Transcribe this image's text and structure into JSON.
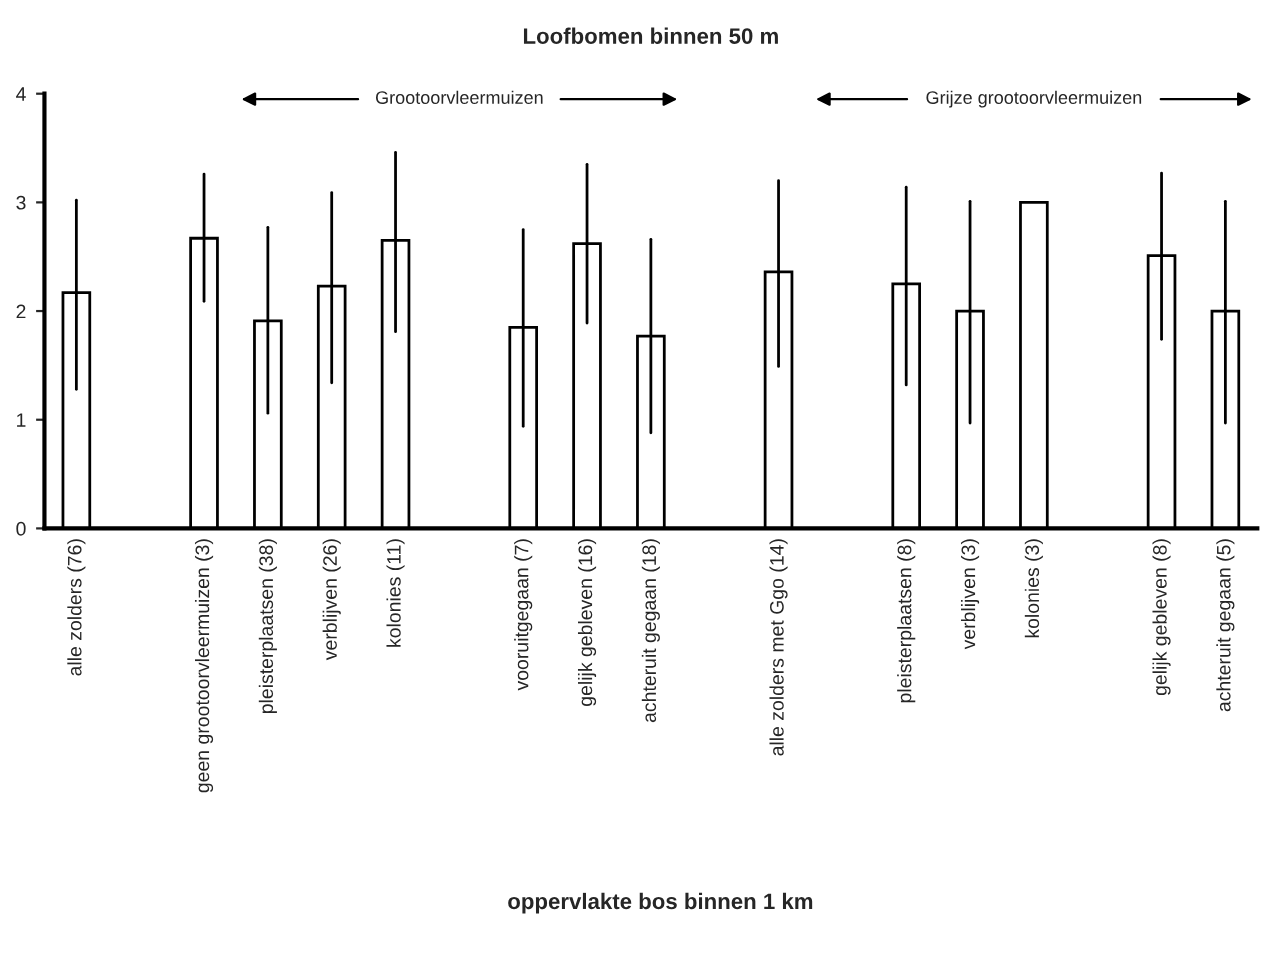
{
  "chart_data": {
    "type": "bar",
    "title": "Loofbomen binnen 50 m",
    "categories": [
      "alle zolders (76)",
      null,
      "geen grootoorvleermuizen (3)",
      "pleisterplaatsen (38)",
      "verblijven (26)",
      "kolonies (11)",
      null,
      "vooruitgegaan (7)",
      "gelijk gebleven (16)",
      "achteruit gegaan (18)",
      null,
      "alle zolders met Ggo (14)",
      null,
      "pleisterplaatsen (8)",
      "verblijven (3)",
      "kolonies (3)",
      null,
      "gelijk gebleven (8)",
      "achteruit gegaan (5)"
    ],
    "values": [
      2.17,
      null,
      2.67,
      1.91,
      2.23,
      2.65,
      null,
      1.85,
      2.62,
      1.77,
      null,
      2.36,
      null,
      2.25,
      2.0,
      3.0,
      null,
      2.51,
      2.0
    ],
    "errors": [
      [
        1.28,
        3.02
      ],
      null,
      [
        2.09,
        3.26
      ],
      [
        1.06,
        2.77
      ],
      [
        1.34,
        3.09
      ],
      [
        1.81,
        3.46
      ],
      null,
      [
        0.94,
        2.75
      ],
      [
        1.89,
        3.35
      ],
      [
        0.88,
        2.66
      ],
      null,
      [
        1.49,
        3.2
      ],
      null,
      [
        1.32,
        3.14
      ],
      [
        0.97,
        3.01
      ],
      null,
      null,
      [
        1.74,
        3.27
      ],
      [
        0.97,
        3.01
      ]
    ],
    "color": "#ffffff",
    "ylim": [
      0,
      4
    ],
    "yticks": [
      0,
      1,
      2,
      3,
      4
    ],
    "grid": false,
    "annotations": [
      "Grootoorvleermuizen",
      "Grijze grootoorvleermuizen",
      "oppervlakte bos binnen 1 km"
    ]
  }
}
